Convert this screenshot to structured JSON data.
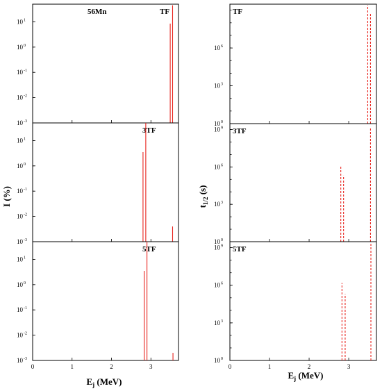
{
  "figure": {
    "left_ylabel": "I (%)",
    "right_ylabel_main": "t",
    "right_ylabel_sub": "1/2",
    "right_ylabel_unit": " (s)",
    "xlabel_main": "E",
    "xlabel_sub": "j",
    "xlabel_unit": " (MeV)",
    "nucleus_label": "56Mn",
    "line_color": "#e8231d"
  },
  "chart_data": [
    {
      "type": "bar",
      "panel": "left-top",
      "label": "TF",
      "yscale": "log",
      "ylim": [
        0.001,
        50
      ],
      "xlim": [
        0,
        3.7
      ],
      "x_ticks": [
        0,
        1,
        2,
        3
      ],
      "y_ticks": [
        {
          "mant": "10",
          "exp": "1"
        },
        {
          "mant": "10",
          "exp": "0"
        },
        {
          "mant": "10",
          "exp": "-1"
        },
        {
          "mant": "10",
          "exp": "-2"
        },
        {
          "mant": "10",
          "exp": "-3"
        }
      ],
      "x": [
        3.49,
        3.55
      ],
      "values": [
        8.5,
        45
      ]
    },
    {
      "type": "bar",
      "panel": "left-middle",
      "label": "3TF",
      "yscale": "log",
      "ylim": [
        0.001,
        50
      ],
      "xlim": [
        0,
        3.7
      ],
      "x_ticks": [
        0,
        1,
        2,
        3
      ],
      "y_ticks": [
        {
          "mant": "10",
          "exp": "1"
        },
        {
          "mant": "10",
          "exp": "0"
        },
        {
          "mant": "10",
          "exp": "-1"
        },
        {
          "mant": "10",
          "exp": "-2"
        },
        {
          "mant": "10",
          "exp": "-3"
        }
      ],
      "x": [
        2.8,
        2.87,
        3.55
      ],
      "values": [
        3.5,
        80,
        0.004
      ]
    },
    {
      "type": "bar",
      "panel": "left-bottom",
      "label": "5TF",
      "yscale": "log",
      "ylim": [
        0.001,
        50
      ],
      "xlim": [
        0,
        3.7
      ],
      "x_ticks": [
        0,
        1,
        2,
        3
      ],
      "x_tick_labels": [
        "0",
        "1",
        "2",
        "3"
      ],
      "y_ticks": [
        {
          "mant": "10",
          "exp": "1"
        },
        {
          "mant": "10",
          "exp": "0"
        },
        {
          "mant": "10",
          "exp": "-1"
        },
        {
          "mant": "10",
          "exp": "-2"
        },
        {
          "mant": "10",
          "exp": "-3"
        }
      ],
      "x": [
        2.83,
        2.9,
        3.56
      ],
      "values": [
        3.5,
        80,
        0.002
      ]
    },
    {
      "type": "bar",
      "panel": "right-top",
      "label": "TF",
      "yscale": "log",
      "ylim": [
        1,
        3000000000.0
      ],
      "xlim": [
        0,
        3.7
      ],
      "x_ticks": [
        0,
        1,
        2,
        3
      ],
      "y_ticks": [
        {
          "mant": "10",
          "exp": "6"
        },
        {
          "mant": "10",
          "exp": "3"
        },
        {
          "mant": "10",
          "exp": "0"
        }
      ],
      "x": [
        3.48,
        3.55
      ],
      "values": [
        2500000000.0,
        500000000.0
      ]
    },
    {
      "type": "bar",
      "panel": "right-middle",
      "label": "3TF",
      "yscale": "log",
      "ylim": [
        1,
        3000000000.0
      ],
      "xlim": [
        0,
        3.7
      ],
      "x_ticks": [
        0,
        1,
        2,
        3
      ],
      "y_ticks": [
        {
          "mant": "10",
          "exp": "9"
        },
        {
          "mant": "10",
          "exp": "6"
        },
        {
          "mant": "10",
          "exp": "3"
        },
        {
          "mant": "10",
          "exp": "0"
        }
      ],
      "x": [
        2.8,
        2.87,
        3.55
      ],
      "values": [
        1200000.0,
        200000.0,
        1500000000.0
      ]
    },
    {
      "type": "bar",
      "panel": "right-bottom",
      "label": "5TF",
      "yscale": "log",
      "ylim": [
        1,
        3000000000.0
      ],
      "xlim": [
        0,
        3.7
      ],
      "x_ticks": [
        0,
        1,
        2,
        3
      ],
      "x_tick_labels": [
        "0",
        "1",
        "2",
        "3"
      ],
      "y_ticks": [
        {
          "mant": "10",
          "exp": "9"
        },
        {
          "mant": "10",
          "exp": "6"
        },
        {
          "mant": "10",
          "exp": "3"
        },
        {
          "mant": "10",
          "exp": "0"
        }
      ],
      "x": [
        2.83,
        2.91,
        3.56
      ],
      "values": [
        1500000.0,
        200000.0,
        2000000000.0
      ]
    }
  ]
}
